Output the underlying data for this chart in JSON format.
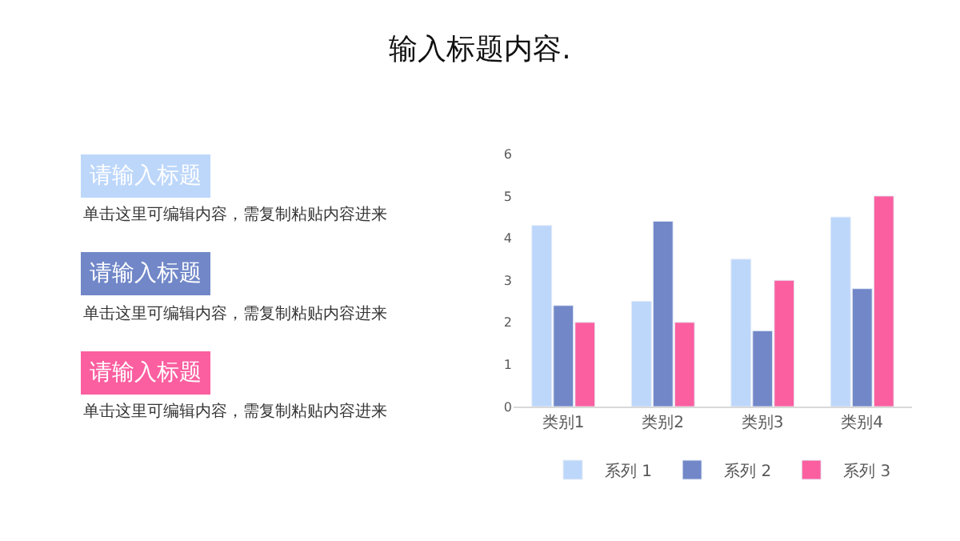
{
  "chart_data": {
    "type": "bar",
    "title": "输入标题内容.",
    "categories": [
      "类别1",
      "类别2",
      "类别3",
      "类别4"
    ],
    "series": [
      {
        "name": "系列 1",
        "color": "#bdd7fb",
        "values": [
          4.3,
          2.5,
          3.5,
          4.5
        ]
      },
      {
        "name": "系列 2",
        "color": "#7187c8",
        "values": [
          2.4,
          4.4,
          1.8,
          2.8
        ]
      },
      {
        "name": "系列 3",
        "color": "#fb5fa0",
        "values": [
          2,
          2,
          3,
          5
        ]
      }
    ],
    "ylim": [
      0,
      6
    ],
    "yticks": [
      0,
      1,
      2,
      3,
      4,
      5,
      6
    ],
    "legend": "bottom",
    "annotations": [
      "请输入标题",
      "单击这里可编辑内容，需复制粘贴内容进来",
      "请输入标题",
      "单击这里可编辑内容，需复制粘贴内容进来",
      "请输入标题",
      "单击这里可编辑内容，需复制粘贴内容进来"
    ]
  }
}
